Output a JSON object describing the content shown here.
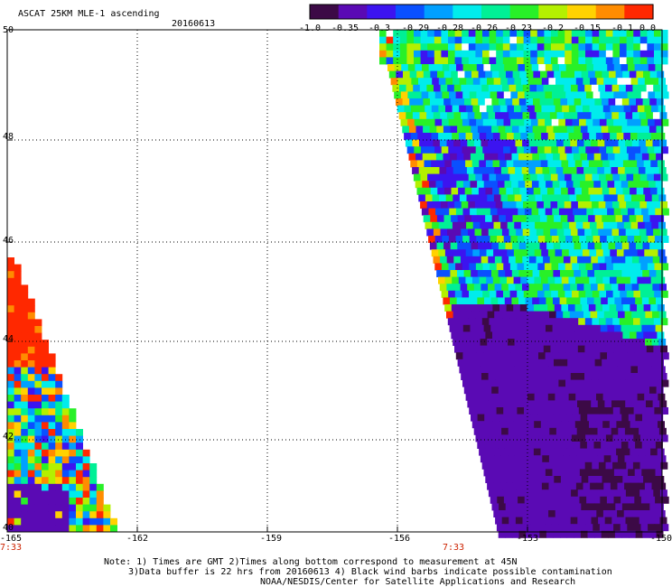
{
  "header": {
    "title": "ASCAT 25KM MLE-1 ascending",
    "date": "20160613"
  },
  "colorbar": {
    "labels": [
      "-1.0",
      "-0.35",
      "-0.3",
      "-0.29",
      "-0.28",
      "-0.26",
      "-0.23",
      "-0.2",
      "-0.15",
      "-0.1",
      "0.0"
    ],
    "colors": [
      "#3c0a46",
      "#5a0ab4",
      "#3c14f0",
      "#0a50ff",
      "#00a0ff",
      "#00ecec",
      "#00f096",
      "#28f028",
      "#b4f000",
      "#ffd200",
      "#ff8c00",
      "#ff2800"
    ]
  },
  "axes": {
    "lat_labels": [
      "50",
      "48",
      "46",
      "44",
      "42",
      "40"
    ],
    "lon_labels": [
      "-165",
      "-162",
      "-159",
      "-156",
      "-153",
      "-150"
    ],
    "time_labels": [
      "7:33",
      "7:33"
    ]
  },
  "footer": {
    "line1": "Note: 1) Times are GMT 2)Times along bottom correspond to measurement at 45N",
    "line2": "3)Data buffer is 22 hrs from 20160613 4) Black wind barbs indicate possible contamination",
    "line3": "NOAA/NESDIS/Center for Satellite Applications and Research"
  }
}
